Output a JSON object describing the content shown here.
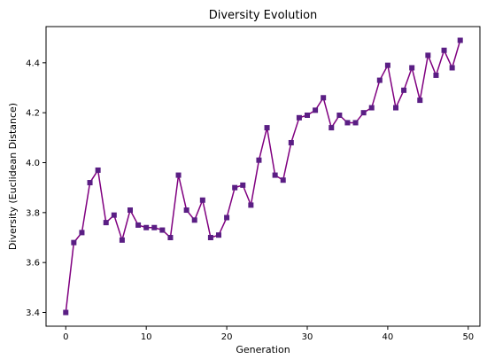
{
  "chart_data": {
    "type": "line",
    "title": "Diversity Evolution",
    "xlabel": "Generation",
    "ylabel": "Diversity (Euclidean Distance)",
    "xlim": [
      -2.45,
      51.45
    ],
    "ylim": [
      3.345,
      4.545
    ],
    "xticks": [
      0,
      10,
      20,
      30,
      40,
      50
    ],
    "yticks": [
      3.4,
      3.6,
      3.8,
      4.0,
      4.2,
      4.4
    ],
    "xtick_labels": [
      "0",
      "10",
      "20",
      "30",
      "40",
      "50"
    ],
    "ytick_labels": [
      "3.4",
      "3.6",
      "3.8",
      "4.0",
      "4.2",
      "4.4"
    ],
    "grid": false,
    "legend": "none",
    "series": [
      {
        "color": "#800080",
        "marker_color": "#5a1e84",
        "marker": "square",
        "x": [
          0,
          1,
          2,
          3,
          4,
          5,
          6,
          7,
          8,
          9,
          10,
          11,
          12,
          13,
          14,
          15,
          16,
          17,
          18,
          19,
          20,
          21,
          22,
          23,
          24,
          25,
          26,
          27,
          28,
          29,
          30,
          31,
          32,
          33,
          34,
          35,
          36,
          37,
          38,
          39,
          40,
          41,
          42,
          43,
          44,
          45,
          46,
          47,
          48,
          49
        ],
        "y": [
          3.4,
          3.68,
          3.72,
          3.92,
          3.97,
          3.76,
          3.79,
          3.69,
          3.81,
          3.75,
          3.74,
          3.74,
          3.73,
          3.7,
          3.95,
          3.81,
          3.77,
          3.85,
          3.7,
          3.71,
          3.78,
          3.9,
          3.91,
          3.83,
          4.01,
          4.14,
          3.95,
          3.93,
          4.08,
          4.18,
          4.19,
          4.21,
          4.26,
          4.14,
          4.19,
          4.16,
          4.16,
          4.2,
          4.22,
          4.33,
          4.39,
          4.22,
          4.29,
          4.38,
          4.25,
          4.43,
          4.35,
          4.45,
          4.38,
          4.49
        ]
      }
    ]
  }
}
